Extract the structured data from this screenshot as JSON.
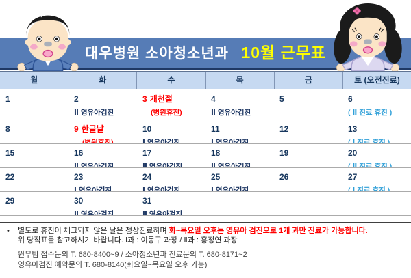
{
  "banner": {
    "title_main": "대우병원 소아청소년과",
    "title_highlight": "10월 근무표"
  },
  "illustrations": {
    "left": "boy-doctor-character",
    "right": "girl-nurse-character"
  },
  "calendar": {
    "weekday_headers": [
      "월",
      "화",
      "수",
      "목",
      "금",
      "토 (오전진료)"
    ],
    "weeks": [
      [
        {
          "day": "1"
        },
        {
          "day": "2",
          "note": "Ⅱ 영유아검진",
          "note_type": "checkup"
        },
        {
          "day": "3",
          "holiday": "개천절",
          "note": "(병원휴진)",
          "note_type": "holiday"
        },
        {
          "day": "4",
          "note": "Ⅱ 영유아검진",
          "note_type": "checkup"
        },
        {
          "day": "5"
        },
        {
          "day": "6",
          "note": "( Ⅱ 진료 휴진 )",
          "note_type": "closed"
        }
      ],
      [
        {
          "day": "8"
        },
        {
          "day": "9",
          "holiday": "한글날",
          "note": "(병원휴진)",
          "note_type": "holiday"
        },
        {
          "day": "10",
          "note": "Ⅰ 영유아검진",
          "note_type": "checkup"
        },
        {
          "day": "11",
          "note": "Ⅰ 영유아검진",
          "note_type": "checkup"
        },
        {
          "day": "12"
        },
        {
          "day": "13",
          "note": "( Ⅰ 진료 휴진 )",
          "note_type": "closed"
        }
      ],
      [
        {
          "day": "15"
        },
        {
          "day": "16",
          "note": "Ⅱ 영유아검진",
          "note_type": "checkup"
        },
        {
          "day": "17",
          "note": "Ⅱ 영유아검진",
          "note_type": "checkup"
        },
        {
          "day": "18",
          "note": "Ⅱ 영유아검진",
          "note_type": "checkup"
        },
        {
          "day": "19"
        },
        {
          "day": "20",
          "note": "( Ⅱ 진료 휴진 )",
          "note_type": "closed"
        }
      ],
      [
        {
          "day": "22"
        },
        {
          "day": "23",
          "note": "Ⅰ 영유아검진",
          "note_type": "checkup"
        },
        {
          "day": "24",
          "note": "Ⅰ 영유아검진",
          "note_type": "checkup"
        },
        {
          "day": "25",
          "note": "Ⅰ 영유아검진",
          "note_type": "checkup"
        },
        {
          "day": "26"
        },
        {
          "day": "27",
          "note": "( Ⅰ 진료 휴진 )",
          "note_type": "closed"
        }
      ],
      [
        {
          "day": "29"
        },
        {
          "day": "30",
          "note": "Ⅱ 영유아검진",
          "note_type": "checkup"
        },
        {
          "day": "31",
          "note": "Ⅱ 영유아검진",
          "note_type": "checkup"
        },
        {},
        {},
        {}
      ]
    ]
  },
  "footer": {
    "bullet": "•",
    "note_line1_normal": "별도로 휴진이 체크되지 않은 날은 정상진료하며 ",
    "note_line1_red": "화~목요일 오후는 영유아 검진으로 1개 과만 진료가 가능합니다.",
    "note_line2": "위 당직표를 참고하시기 바랍니다.  Ⅰ과 : 이동구 과장  /  Ⅱ과 : 홍정연 과장",
    "contact_line1": "원무팀 접수문의 T. 680-8400~9    /    소아청소년과 진료문의 T. 680-8171~2",
    "contact_line2": "영유아검진 예약문의 T. 680-8140(화요일~목요일 오후 가능)"
  },
  "colors": {
    "banner_bg": "#567CB6",
    "banner_title": "#FFFFFF",
    "banner_highlight": "#FFFF00",
    "weekday_header_bg": "#C6D9F1",
    "navy_text": "#17375E",
    "holiday_red": "#FF0000",
    "saturday_closed_blue": "#2E9FD8",
    "row_divider_gray": "#ABABAB"
  }
}
